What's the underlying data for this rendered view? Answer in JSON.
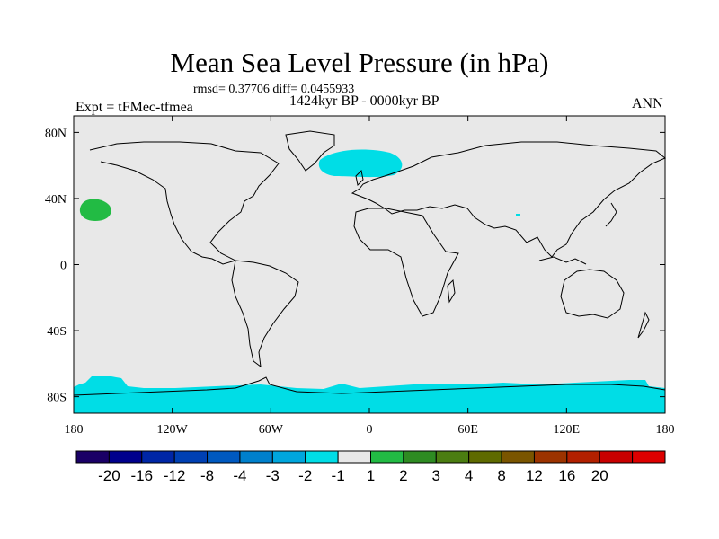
{
  "title": "Mean Sea Level Pressure (in hPa)",
  "stats": "rmsd= 0.37706 diff= 0.0455933",
  "period": "1424kyr BP - 0000kyr BP",
  "experiment": "Expt = tFMec-tfmea",
  "season": "ANN",
  "map": {
    "background_color": "#e8e8e8",
    "lat_range": [
      -90,
      90
    ],
    "lon_range": [
      -180,
      180
    ],
    "lat_ticks": [
      {
        "value": 80,
        "label": "80N"
      },
      {
        "value": 40,
        "label": "40N"
      },
      {
        "value": 0,
        "label": "0"
      },
      {
        "value": -40,
        "label": "40S"
      },
      {
        "value": -80,
        "label": "80S"
      }
    ],
    "lon_ticks": [
      {
        "value": -180,
        "label": "180"
      },
      {
        "value": -120,
        "label": "120W"
      },
      {
        "value": -60,
        "label": "60W"
      },
      {
        "value": 0,
        "label": "0"
      },
      {
        "value": 60,
        "label": "60E"
      },
      {
        "value": 120,
        "label": "120E"
      },
      {
        "value": 180,
        "label": "180"
      }
    ],
    "anomaly_regions": [
      {
        "name": "north-atlantic-negative",
        "category": "-2 to -1",
        "color": "#00dde6"
      },
      {
        "name": "north-pacific-positive",
        "category": "1 to 2",
        "color": "#22bb44"
      },
      {
        "name": "southern-ocean-negative",
        "category": "-2 to -1",
        "color": "#00dde6"
      }
    ]
  },
  "colorbar": {
    "colors": [
      "#1a0066",
      "#00008c",
      "#0026a6",
      "#0040b3",
      "#0059c0",
      "#0080cc",
      "#00a6dd",
      "#00dde6",
      "#e8e8e8",
      "#22bb44",
      "#2e8b22",
      "#4b7d11",
      "#5e6a00",
      "#7a5500",
      "#9c3300",
      "#b22000",
      "#c80000",
      "#dd0000"
    ],
    "labels": [
      "-20",
      "-16",
      "-12",
      "-8",
      "-4",
      "-3",
      "-2",
      "-1",
      "1",
      "2",
      "3",
      "4",
      "8",
      "12",
      "16",
      "20"
    ]
  }
}
